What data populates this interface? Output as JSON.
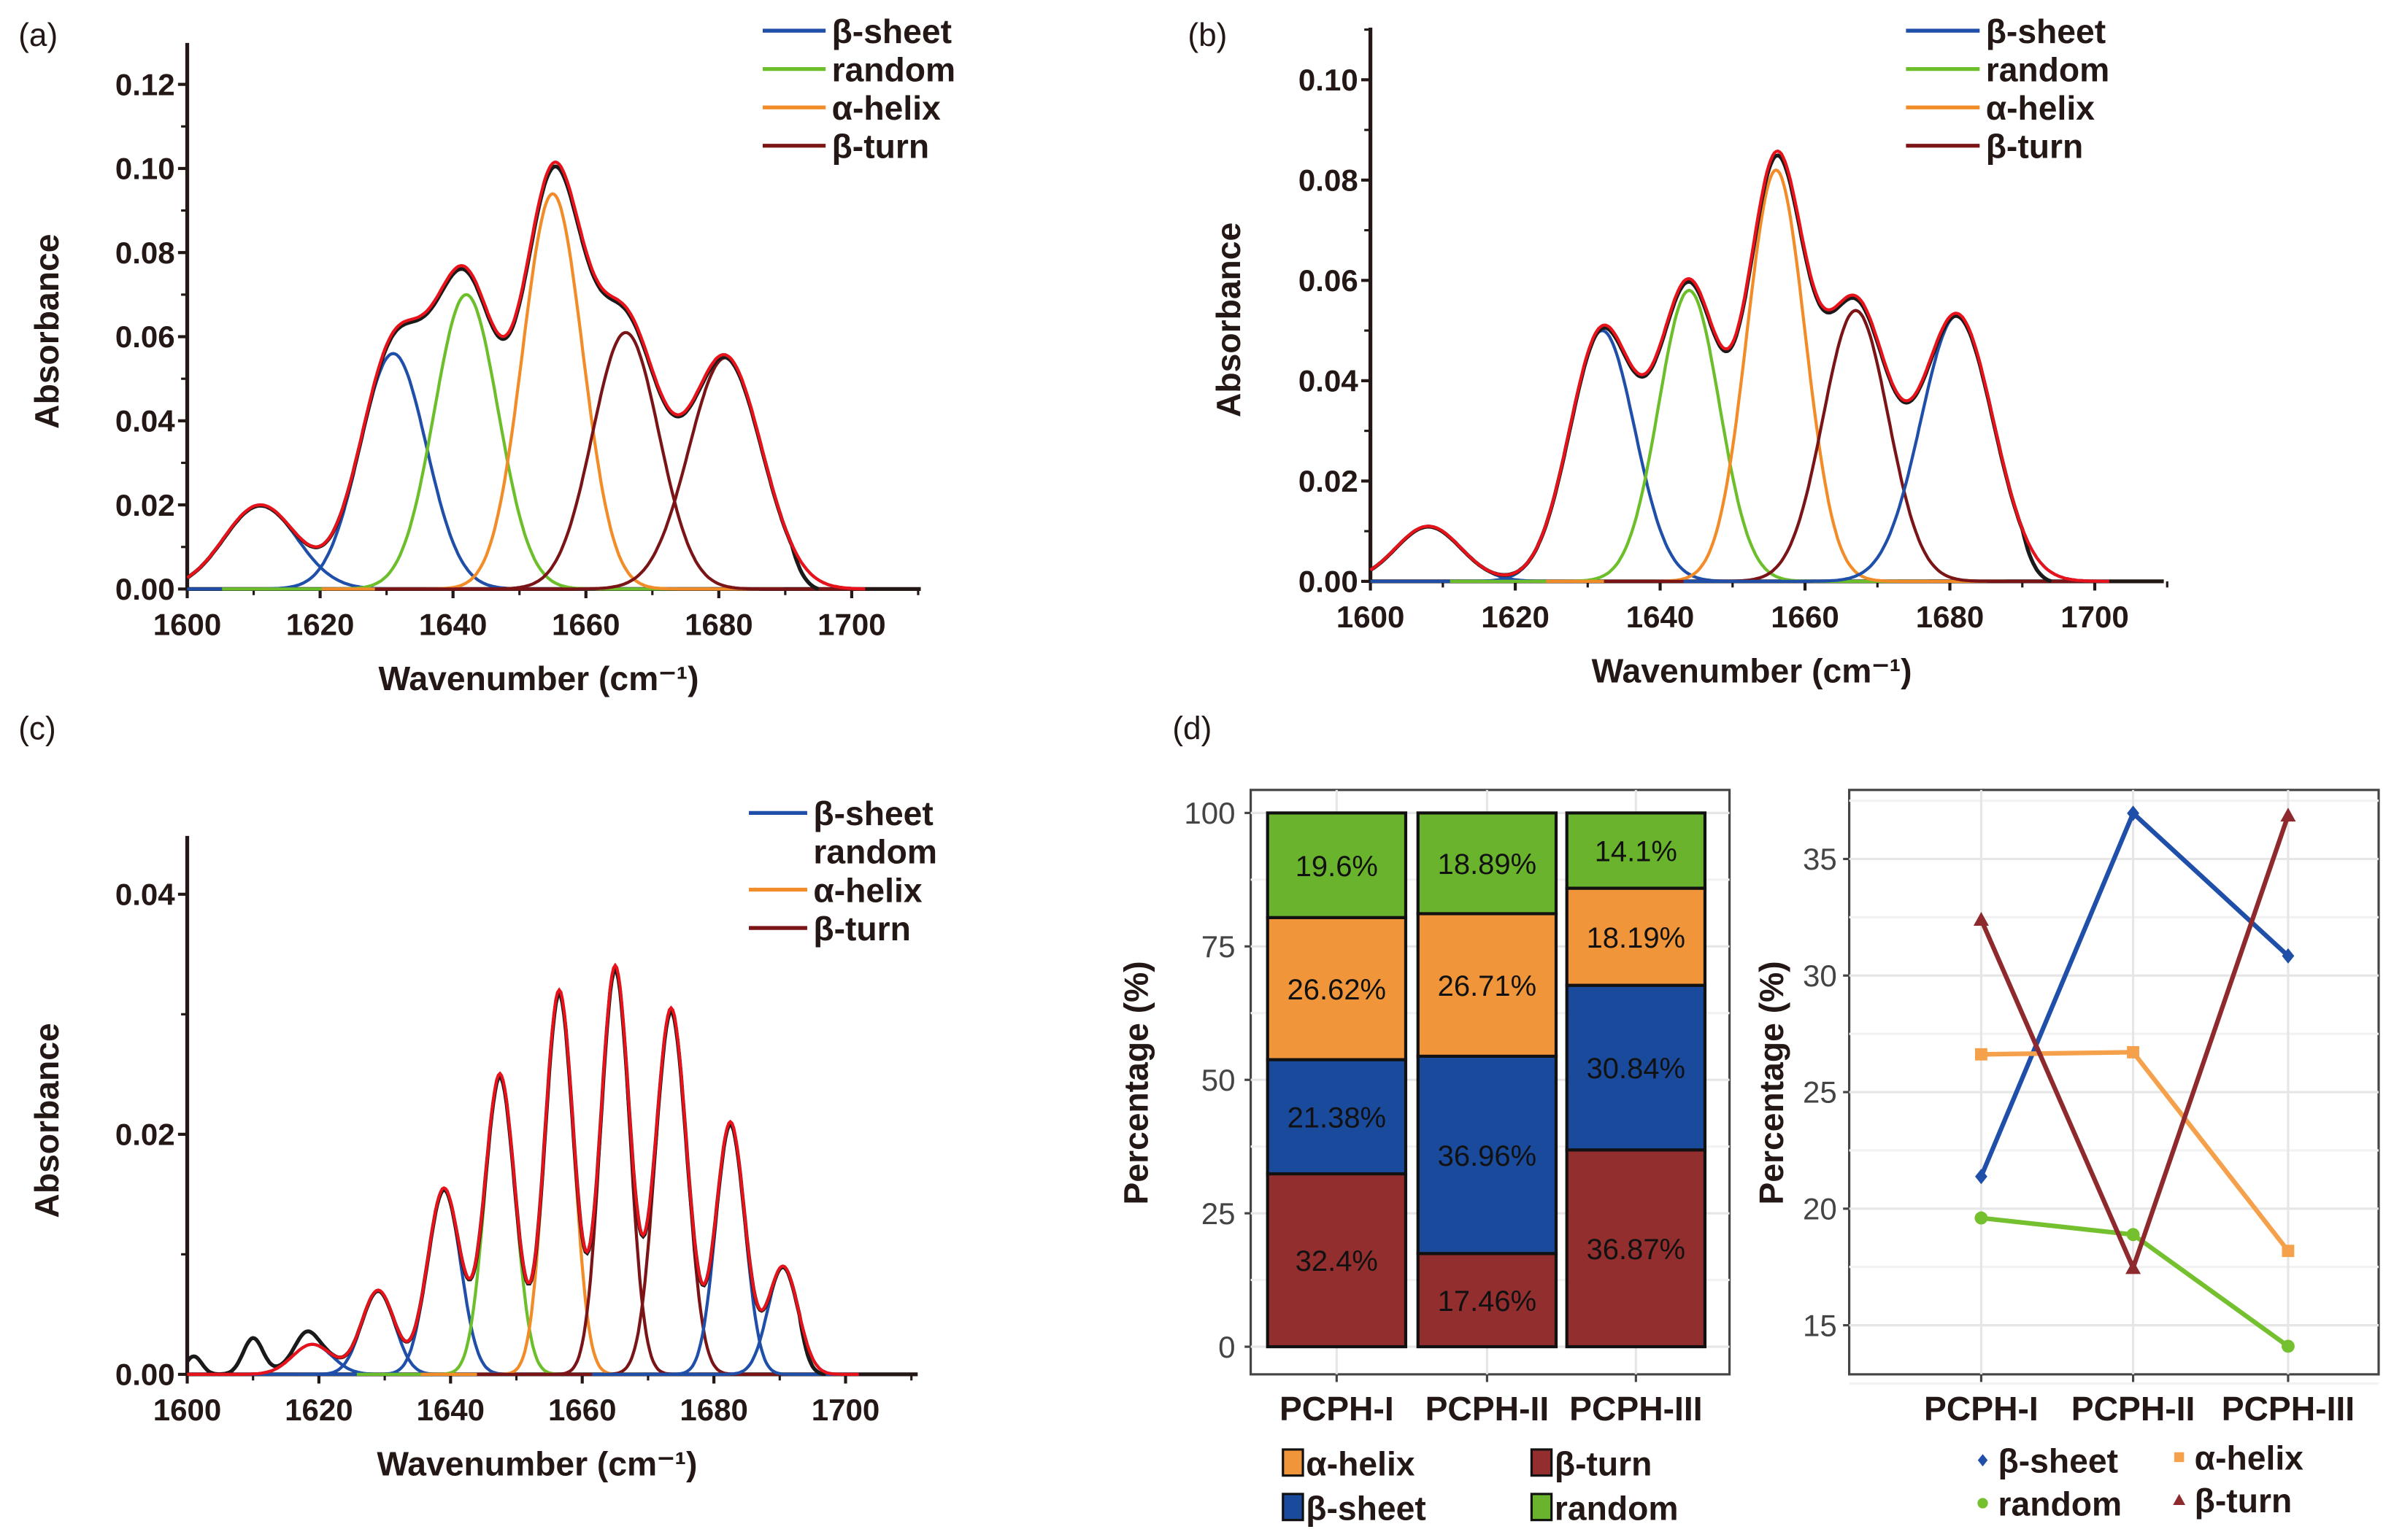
{
  "panel_labels": {
    "a": "(a)",
    "b": "(b)",
    "c": "(c)",
    "d": "(d)"
  },
  "colors": {
    "beta_sheet": "#1f4fa8",
    "random": "#6cbf2a",
    "alpha_helix": "#f28c28",
    "beta_turn": "#7b1416",
    "fit": "#e8121b",
    "measured": "#1a1a1a",
    "bar_alpha_helix": "#f0953a",
    "bar_beta_sheet": "#1a4a9c",
    "bar_beta_turn": "#922e2e",
    "bar_random": "#6ab42d"
  },
  "chart_data": [
    {
      "id": "a",
      "type": "line",
      "xlabel": "Wavenumber (cm⁻¹)",
      "ylabel": "Absorbance",
      "xlim": [
        1600,
        1710
      ],
      "ylim": [
        0,
        0.13
      ],
      "xticks": [
        "1600",
        "1620",
        "1640",
        "1660",
        "1680",
        "1700"
      ],
      "yticks": [
        "0.00",
        "0.02",
        "0.04",
        "0.06",
        "0.08",
        "0.10",
        "0.12"
      ],
      "legend": [
        {
          "label": "β-sheet",
          "key": "beta_sheet"
        },
        {
          "label": "random",
          "key": "random"
        },
        {
          "label": "α-helix",
          "key": "alpha_helix"
        },
        {
          "label": "β-turn",
          "key": "beta_turn"
        }
      ],
      "measured_range": [
        1600,
        1695
      ],
      "components": [
        {
          "key": "beta_sheet",
          "center": 1611,
          "height": 0.02,
          "sigma": 5.5
        },
        {
          "key": "beta_sheet",
          "center": 1631,
          "height": 0.056,
          "sigma": 5
        },
        {
          "key": "random",
          "center": 1642,
          "height": 0.07,
          "sigma": 4.8
        },
        {
          "key": "alpha_helix",
          "center": 1655,
          "height": 0.094,
          "sigma": 4.5
        },
        {
          "key": "beta_turn",
          "center": 1666,
          "height": 0.061,
          "sigma": 5
        },
        {
          "key": "beta_turn",
          "center": 1681,
          "height": 0.055,
          "sigma": 5.5
        }
      ]
    },
    {
      "id": "b",
      "type": "line",
      "xlabel": "Wavenumber (cm⁻¹)",
      "ylabel": "Absorbance",
      "xlim": [
        1600,
        1710
      ],
      "ylim": [
        0,
        0.11
      ],
      "xticks": [
        "1600",
        "1620",
        "1640",
        "1660",
        "1680",
        "1700"
      ],
      "yticks": [
        "0.00",
        "0.02",
        "0.04",
        "0.06",
        "0.08",
        "0.10"
      ],
      "legend": [
        {
          "label": "β-sheet",
          "key": "beta_sheet"
        },
        {
          "label": "random",
          "key": "random"
        },
        {
          "label": "α-helix",
          "key": "alpha_helix"
        },
        {
          "label": "β-turn",
          "key": "beta_turn"
        }
      ],
      "measured_range": [
        1600,
        1694
      ],
      "components": [
        {
          "key": "beta_sheet",
          "center": 1608,
          "height": 0.011,
          "sigma": 4.5
        },
        {
          "key": "beta_sheet",
          "center": 1632,
          "height": 0.05,
          "sigma": 4.5
        },
        {
          "key": "random",
          "center": 1644,
          "height": 0.058,
          "sigma": 4.2
        },
        {
          "key": "alpha_helix",
          "center": 1656,
          "height": 0.082,
          "sigma": 4
        },
        {
          "key": "beta_turn",
          "center": 1667,
          "height": 0.054,
          "sigma": 4.5
        },
        {
          "key": "beta_sheet",
          "center": 1681,
          "height": 0.053,
          "sigma": 5
        }
      ]
    },
    {
      "id": "c",
      "type": "line",
      "xlabel": "Wavenumber (cm⁻¹)",
      "ylabel": "Absorbance",
      "xlim": [
        1600,
        1710
      ],
      "ylim": [
        0,
        0.045
      ],
      "xticks": [
        "1600",
        "1620",
        "1640",
        "1660",
        "1680",
        "1700"
      ],
      "yticks": [
        "0.00",
        "0.02",
        "0.04"
      ],
      "legend": [
        {
          "label": "β-sheet",
          "key": "beta_sheet"
        },
        {
          "label": "random",
          "key": null
        },
        {
          "label": "α-helix",
          "key": "alpha_helix"
        },
        {
          "label": "β-turn",
          "key": "beta_turn"
        }
      ],
      "measured_range": [
        1600,
        1697
      ],
      "measured_extra": [
        {
          "center": 1601,
          "height": 0.0015,
          "sigma": 1.2
        },
        {
          "center": 1610,
          "height": 0.003,
          "sigma": 1.5
        },
        {
          "center": 1618,
          "height": 0.0012,
          "sigma": 1.5
        }
      ],
      "components": [
        {
          "key": "beta_sheet",
          "center": 1619,
          "height": 0.0025,
          "sigma": 3
        },
        {
          "key": "beta_sheet",
          "center": 1629,
          "height": 0.007,
          "sigma": 2.5
        },
        {
          "key": "beta_sheet",
          "center": 1639,
          "height": 0.0155,
          "sigma": 2.5
        },
        {
          "key": "random",
          "center": 1647.5,
          "height": 0.025,
          "sigma": 2.3
        },
        {
          "key": "alpha_helix",
          "center": 1656.5,
          "height": 0.032,
          "sigma": 2.2
        },
        {
          "key": "beta_turn",
          "center": 1665,
          "height": 0.034,
          "sigma": 2.2
        },
        {
          "key": "beta_turn",
          "center": 1673.5,
          "height": 0.0305,
          "sigma": 2.4
        },
        {
          "key": "beta_sheet",
          "center": 1682.5,
          "height": 0.021,
          "sigma": 2.2
        },
        {
          "key": "beta_sheet",
          "center": 1690.5,
          "height": 0.009,
          "sigma": 2.3
        }
      ]
    },
    {
      "id": "d-bar",
      "type": "bar",
      "stacked": true,
      "ylabel": "Percentage (%)",
      "ylim": [
        0,
        100
      ],
      "yticks": [
        "0",
        "25",
        "50",
        "75",
        "100"
      ],
      "categories": [
        "PCPH-I",
        "PCPH-II",
        "PCPH-III"
      ],
      "series": [
        {
          "name": "β-turn",
          "key": "bar_beta_turn",
          "values": [
            32.4,
            17.46,
            36.87
          ],
          "labels": [
            "32.4%",
            "17.46%",
            "36.87%"
          ]
        },
        {
          "name": "β-sheet",
          "key": "bar_beta_sheet",
          "values": [
            21.38,
            36.96,
            30.84
          ],
          "labels": [
            "21.38%",
            "36.96%",
            "30.84%"
          ]
        },
        {
          "name": "α-helix",
          "key": "bar_alpha_helix",
          "values": [
            26.62,
            26.71,
            18.19
          ],
          "labels": [
            "26.62%",
            "26.71%",
            "18.19%"
          ]
        },
        {
          "name": "random",
          "key": "bar_random",
          "values": [
            19.6,
            18.89,
            14.1
          ],
          "labels": [
            "19.6%",
            "18.89%",
            "14.1%"
          ]
        }
      ],
      "legend": [
        {
          "label": "α-helix",
          "key": "bar_alpha_helix"
        },
        {
          "label": "β-turn",
          "key": "bar_beta_turn"
        },
        {
          "label": "β-sheet",
          "key": "bar_beta_sheet"
        },
        {
          "label": "random",
          "key": "bar_random"
        }
      ]
    },
    {
      "id": "d-line",
      "type": "line",
      "ylabel": "Percentage (%)",
      "ylim": [
        13,
        37.5
      ],
      "yticks": [
        "15",
        "20",
        "25",
        "30",
        "35"
      ],
      "categories": [
        "PCPH-I",
        "PCPH-II",
        "PCPH-III"
      ],
      "series": [
        {
          "name": "β-sheet",
          "key": "beta_sheet",
          "marker": "diamond",
          "values": [
            21.38,
            36.96,
            30.84
          ]
        },
        {
          "name": "α-helix",
          "key": "alpha_helix",
          "marker": "square",
          "values": [
            26.62,
            26.71,
            18.19
          ]
        },
        {
          "name": "random",
          "key": "random",
          "marker": "circle",
          "values": [
            19.6,
            18.89,
            14.1
          ]
        },
        {
          "name": "β-turn",
          "key": "beta_turn",
          "marker": "triangle",
          "values": [
            32.4,
            17.46,
            36.87
          ]
        }
      ]
    }
  ]
}
